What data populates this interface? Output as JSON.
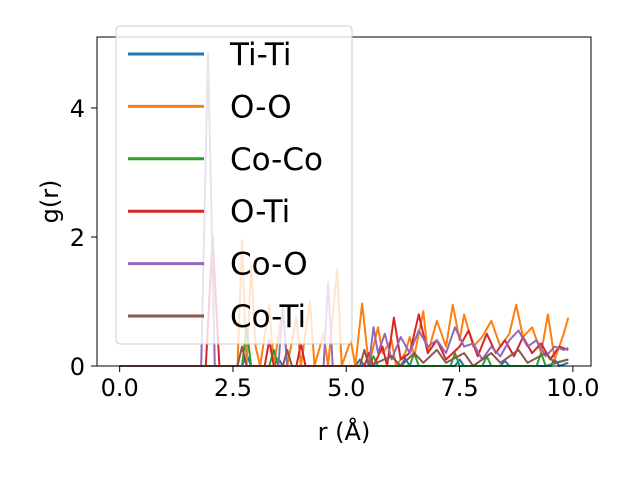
{
  "chart_data": {
    "type": "line",
    "title": "",
    "xlabel": "r (Å)",
    "ylabel": "g(r)",
    "xlim": [
      -0.5,
      10.4
    ],
    "ylim": [
      0,
      5.1
    ],
    "xticks": [
      0.0,
      2.5,
      5.0,
      7.5,
      10.0
    ],
    "xtick_labels": [
      "0.0",
      "2.5",
      "5.0",
      "7.5",
      "10.0"
    ],
    "yticks": [
      0,
      2,
      4
    ],
    "ytick_labels": [
      "0",
      "2",
      "4"
    ],
    "grid": false,
    "legend_position": "top-left",
    "series": [
      {
        "name": "Ti-Ti",
        "color": "#1f77b4",
        "points": [
          [
            0.0,
            0
          ],
          [
            2.7,
            0
          ],
          [
            2.8,
            0.18
          ],
          [
            2.9,
            0
          ],
          [
            3.4,
            0
          ],
          [
            3.5,
            0.12
          ],
          [
            3.6,
            0
          ],
          [
            5.2,
            0
          ],
          [
            5.3,
            0.1
          ],
          [
            5.4,
            0
          ],
          [
            6.2,
            0
          ],
          [
            6.3,
            0.12
          ],
          [
            6.4,
            0
          ],
          [
            7.4,
            0
          ],
          [
            7.5,
            0.1
          ],
          [
            7.6,
            0
          ],
          [
            8.4,
            0
          ],
          [
            8.5,
            0.08
          ],
          [
            8.6,
            0
          ],
          [
            9.5,
            0
          ],
          [
            9.6,
            0.1
          ],
          [
            9.7,
            0
          ],
          [
            9.9,
            0.05
          ]
        ]
      },
      {
        "name": "O-O",
        "color": "#ff7f0e",
        "points": [
          [
            0.0,
            0
          ],
          [
            2.6,
            0
          ],
          [
            2.7,
            1.95
          ],
          [
            2.8,
            0
          ],
          [
            2.9,
            1.55
          ],
          [
            3.0,
            0.3
          ],
          [
            3.1,
            0
          ],
          [
            3.3,
            0.95
          ],
          [
            3.4,
            0
          ],
          [
            3.6,
            0.9
          ],
          [
            3.7,
            0
          ],
          [
            3.9,
            0.75
          ],
          [
            4.0,
            0
          ],
          [
            4.2,
            1.0
          ],
          [
            4.3,
            0
          ],
          [
            4.5,
            0.5
          ],
          [
            4.6,
            0
          ],
          [
            4.8,
            1.5
          ],
          [
            4.9,
            0
          ],
          [
            5.1,
            0.4
          ],
          [
            5.2,
            0
          ],
          [
            5.35,
            0.97
          ],
          [
            5.5,
            0
          ],
          [
            5.7,
            0.6
          ],
          [
            5.8,
            0.2
          ],
          [
            6.0,
            0.4
          ],
          [
            6.1,
            0
          ],
          [
            6.3,
            0.2
          ],
          [
            6.4,
            0.45
          ],
          [
            6.5,
            0.15
          ],
          [
            6.7,
            0.85
          ],
          [
            6.8,
            0.2
          ],
          [
            7.0,
            0.7
          ],
          [
            7.2,
            0.3
          ],
          [
            7.35,
            0.95
          ],
          [
            7.5,
            0.4
          ],
          [
            7.6,
            0.8
          ],
          [
            7.8,
            0.3
          ],
          [
            8.0,
            0.45
          ],
          [
            8.2,
            0.7
          ],
          [
            8.4,
            0.3
          ],
          [
            8.6,
            0.5
          ],
          [
            8.75,
            0.95
          ],
          [
            8.9,
            0.45
          ],
          [
            9.1,
            0.6
          ],
          [
            9.3,
            0.2
          ],
          [
            9.45,
            0.8
          ],
          [
            9.6,
            0.1
          ],
          [
            9.8,
            0.5
          ],
          [
            9.9,
            0.75
          ]
        ]
      },
      {
        "name": "Co-Co",
        "color": "#2ca02c",
        "points": [
          [
            0.0,
            0
          ],
          [
            2.7,
            0
          ],
          [
            2.8,
            0.6
          ],
          [
            2.9,
            0
          ],
          [
            3.3,
            0
          ],
          [
            3.4,
            0.25
          ],
          [
            3.5,
            0
          ],
          [
            5.5,
            0
          ],
          [
            5.6,
            0.15
          ],
          [
            5.7,
            0
          ],
          [
            6.4,
            0
          ],
          [
            6.5,
            0.2
          ],
          [
            6.6,
            0
          ],
          [
            7.3,
            0
          ],
          [
            7.4,
            0.2
          ],
          [
            7.5,
            0
          ],
          [
            8.0,
            0
          ],
          [
            8.1,
            0.15
          ],
          [
            8.2,
            0
          ],
          [
            9.2,
            0
          ],
          [
            9.3,
            0.2
          ],
          [
            9.4,
            0
          ],
          [
            9.9,
            0.1
          ]
        ]
      },
      {
        "name": "O-Ti",
        "color": "#d62728",
        "points": [
          [
            0.0,
            0
          ],
          [
            1.9,
            0
          ],
          [
            2.05,
            2.0
          ],
          [
            2.2,
            0
          ],
          [
            3.2,
            0
          ],
          [
            3.3,
            0.4
          ],
          [
            3.4,
            0
          ],
          [
            3.9,
            0
          ],
          [
            4.0,
            0.35
          ],
          [
            4.1,
            0
          ],
          [
            5.4,
            0
          ],
          [
            5.5,
            0.2
          ],
          [
            5.6,
            0
          ],
          [
            5.8,
            0.3
          ],
          [
            5.9,
            0
          ],
          [
            6.05,
            0.75
          ],
          [
            6.2,
            0.1
          ],
          [
            6.4,
            0.2
          ],
          [
            6.6,
            0.8
          ],
          [
            6.8,
            0.2
          ],
          [
            7.0,
            0.4
          ],
          [
            7.2,
            0.1
          ],
          [
            7.5,
            0.3
          ],
          [
            7.7,
            0.55
          ],
          [
            7.9,
            0.15
          ],
          [
            8.1,
            0.5
          ],
          [
            8.3,
            0.2
          ],
          [
            8.5,
            0.4
          ],
          [
            8.7,
            0.15
          ],
          [
            8.9,
            0.45
          ],
          [
            9.1,
            0.2
          ],
          [
            9.3,
            0.35
          ],
          [
            9.5,
            0.1
          ],
          [
            9.7,
            0.3
          ],
          [
            9.9,
            0.25
          ]
        ]
      },
      {
        "name": "Co-O",
        "color": "#9467bd",
        "points": [
          [
            0.0,
            0
          ],
          [
            1.8,
            0
          ],
          [
            1.95,
            4.85
          ],
          [
            2.1,
            0
          ],
          [
            3.5,
            0
          ],
          [
            3.6,
            0.9
          ],
          [
            3.7,
            0
          ],
          [
            4.5,
            0
          ],
          [
            4.6,
            1.3
          ],
          [
            4.7,
            0
          ],
          [
            5.5,
            0
          ],
          [
            5.6,
            0.6
          ],
          [
            5.7,
            0.2
          ],
          [
            5.85,
            0.5
          ],
          [
            6.0,
            0.1
          ],
          [
            6.2,
            0.45
          ],
          [
            6.4,
            0.2
          ],
          [
            6.6,
            0.55
          ],
          [
            6.8,
            0.3
          ],
          [
            7.0,
            0.4
          ],
          [
            7.2,
            0.2
          ],
          [
            7.4,
            0.6
          ],
          [
            7.6,
            0.3
          ],
          [
            7.8,
            0.35
          ],
          [
            8.0,
            0.1
          ],
          [
            8.2,
            0.3
          ],
          [
            8.4,
            0.15
          ],
          [
            8.6,
            0.4
          ],
          [
            8.8,
            0.55
          ],
          [
            9.0,
            0.3
          ],
          [
            9.2,
            0.4
          ],
          [
            9.4,
            0.15
          ],
          [
            9.6,
            0.3
          ],
          [
            9.8,
            0.25
          ],
          [
            9.9,
            0.28
          ]
        ]
      },
      {
        "name": "Co-Ti",
        "color": "#8c564b",
        "points": [
          [
            0.0,
            0
          ],
          [
            2.6,
            0
          ],
          [
            2.7,
            0.3
          ],
          [
            2.8,
            0
          ],
          [
            3.6,
            0
          ],
          [
            3.7,
            0.25
          ],
          [
            3.8,
            0
          ],
          [
            5.3,
            0
          ],
          [
            5.4,
            0.25
          ],
          [
            5.5,
            0
          ],
          [
            6.0,
            0.15
          ],
          [
            6.2,
            0
          ],
          [
            6.5,
            0.2
          ],
          [
            6.7,
            0.05
          ],
          [
            7.0,
            0.25
          ],
          [
            7.2,
            0.05
          ],
          [
            7.6,
            0.2
          ],
          [
            7.8,
            0
          ],
          [
            8.2,
            0.2
          ],
          [
            8.4,
            0.05
          ],
          [
            8.8,
            0.25
          ],
          [
            9.0,
            0.05
          ],
          [
            9.4,
            0.2
          ],
          [
            9.6,
            0.05
          ],
          [
            9.9,
            0.1
          ]
        ]
      }
    ]
  }
}
